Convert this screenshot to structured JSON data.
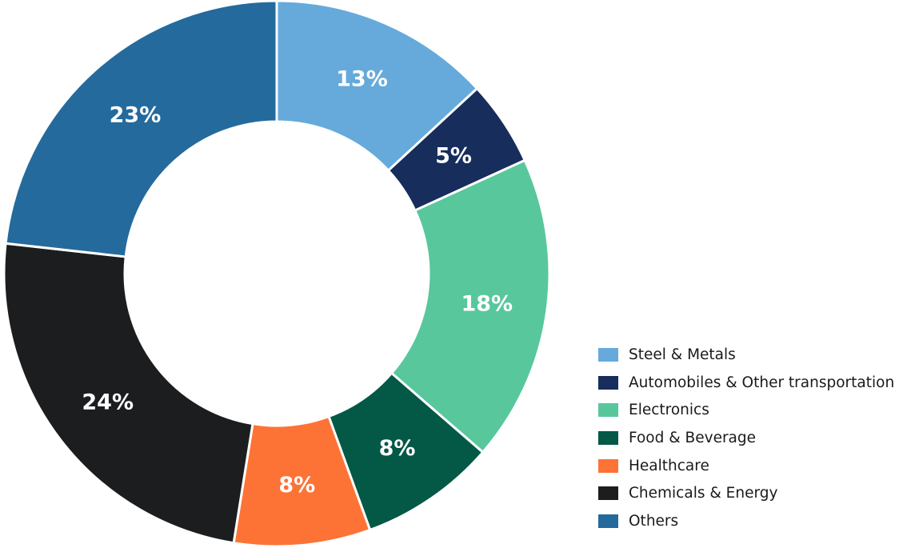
{
  "chart_data": {
    "type": "pie",
    "variant": "donut",
    "title": "",
    "categories": [
      "Steel & Metals",
      "Automobiles & Other transportation",
      "Electronics",
      "Food & Beverage",
      "Healthcare",
      "Chemicals & Energy",
      "Others"
    ],
    "values": [
      13,
      5,
      18,
      8,
      8,
      24,
      23
    ],
    "value_labels": [
      "13%",
      "5%",
      "18%",
      "8%",
      "8%",
      "24%",
      "23%"
    ],
    "colors": [
      "#65aadb",
      "#172d5c",
      "#59c79c",
      "#035846",
      "#fd7336",
      "#1c1d1f",
      "#246a9d"
    ],
    "legend_position": "bottom-right"
  }
}
